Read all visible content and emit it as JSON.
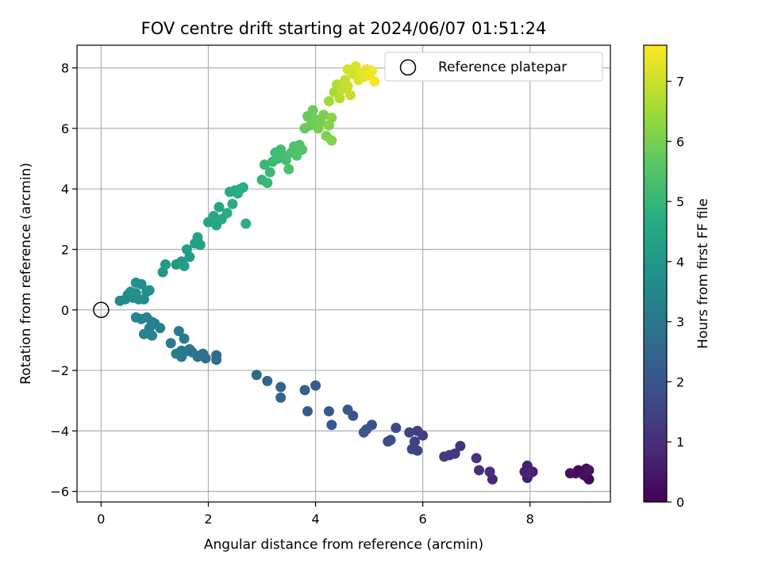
{
  "chart_data": {
    "type": "scatter",
    "title": "FOV centre drift starting at 2024/06/07 01:51:24",
    "xlabel": "Angular distance from reference (arcmin)",
    "ylabel": "Rotation from reference (arcmin)",
    "xlim": [
      -0.45,
      9.5
    ],
    "ylim": [
      -6.35,
      8.75
    ],
    "xticks": [
      0,
      2,
      4,
      6,
      8
    ],
    "yticks": [
      -6,
      -4,
      -2,
      0,
      2,
      4,
      6,
      8
    ],
    "grid": true,
    "colormap": "viridis",
    "colorbar": {
      "label": "Hours from first FF file",
      "range": [
        0,
        7.6
      ],
      "ticks": [
        0,
        1,
        2,
        3,
        4,
        5,
        6,
        7
      ]
    },
    "legend": {
      "position": "top-right",
      "entries": [
        "Reference platepar"
      ]
    },
    "reference_point": {
      "x": 0,
      "y": 0,
      "label": "Reference platepar"
    },
    "points": [
      [
        9.05,
        -5.5,
        0.0
      ],
      [
        8.95,
        -5.35,
        0.05
      ],
      [
        9.1,
        -5.6,
        0.1
      ],
      [
        8.9,
        -5.3,
        0.15
      ],
      [
        9.05,
        -5.25,
        0.2
      ],
      [
        8.85,
        -5.4,
        0.25
      ],
      [
        9.0,
        -5.45,
        0.3
      ],
      [
        8.75,
        -5.4,
        0.35
      ],
      [
        9.1,
        -5.3,
        0.4
      ],
      [
        8.05,
        -5.35,
        0.55
      ],
      [
        7.95,
        -5.55,
        0.6
      ],
      [
        7.95,
        -5.15,
        0.65
      ],
      [
        7.9,
        -5.35,
        0.7
      ],
      [
        8.0,
        -5.4,
        0.75
      ],
      [
        7.3,
        -5.6,
        0.9
      ],
      [
        7.25,
        -5.35,
        0.95
      ],
      [
        7.05,
        -5.3,
        1.0
      ],
      [
        7.0,
        -4.9,
        1.05
      ],
      [
        6.7,
        -4.5,
        1.15
      ],
      [
        6.6,
        -4.75,
        1.2
      ],
      [
        6.5,
        -4.8,
        1.25
      ],
      [
        6.4,
        -4.85,
        1.3
      ],
      [
        6.0,
        -4.15,
        1.4
      ],
      [
        5.9,
        -4.0,
        1.45
      ],
      [
        5.9,
        -4.65,
        1.5
      ],
      [
        5.8,
        -4.6,
        1.55
      ],
      [
        5.85,
        -4.35,
        1.55
      ],
      [
        5.75,
        -4.05,
        1.6
      ],
      [
        5.5,
        -3.9,
        1.7
      ],
      [
        5.4,
        -4.3,
        1.75
      ],
      [
        5.35,
        -4.35,
        1.8
      ],
      [
        5.05,
        -3.8,
        1.85
      ],
      [
        4.95,
        -3.95,
        1.9
      ],
      [
        4.9,
        -4.05,
        1.95
      ],
      [
        4.7,
        -3.5,
        2.0
      ],
      [
        4.6,
        -3.3,
        2.05
      ],
      [
        4.3,
        -3.8,
        2.1
      ],
      [
        4.25,
        -3.35,
        2.15
      ],
      [
        4.0,
        -2.5,
        2.2
      ],
      [
        3.85,
        -3.35,
        2.25
      ],
      [
        3.8,
        -2.65,
        2.3
      ],
      [
        3.35,
        -2.55,
        2.4
      ],
      [
        3.35,
        -2.9,
        2.45
      ],
      [
        3.1,
        -2.35,
        2.5
      ],
      [
        2.9,
        -2.15,
        2.55
      ],
      [
        2.15,
        -1.5,
        2.65
      ],
      [
        2.15,
        -1.65,
        2.7
      ],
      [
        1.95,
        -1.6,
        2.75
      ],
      [
        1.9,
        -1.45,
        2.8
      ],
      [
        1.85,
        -1.5,
        2.85
      ],
      [
        1.8,
        -1.55,
        2.9
      ],
      [
        1.7,
        -1.4,
        2.95
      ],
      [
        1.65,
        -1.3,
        2.95
      ],
      [
        1.55,
        -1.4,
        3.0
      ],
      [
        1.5,
        -1.55,
        3.05
      ],
      [
        1.5,
        -1.35,
        3.05
      ],
      [
        1.55,
        -0.95,
        3.1
      ],
      [
        1.45,
        -0.7,
        3.15
      ],
      [
        1.4,
        -1.45,
        3.1
      ],
      [
        1.3,
        -1.1,
        3.15
      ],
      [
        1.1,
        -0.6,
        3.2
      ],
      [
        1.0,
        -0.45,
        3.25
      ],
      [
        0.95,
        -0.4,
        3.3
      ],
      [
        0.9,
        -0.6,
        3.3
      ],
      [
        0.85,
        -0.25,
        3.35
      ],
      [
        0.95,
        -0.85,
        3.35
      ],
      [
        0.8,
        -0.8,
        3.4
      ],
      [
        0.75,
        -0.3,
        3.4
      ],
      [
        0.65,
        -0.25,
        3.45
      ],
      [
        0.35,
        0.3,
        3.55
      ],
      [
        0.45,
        0.35,
        3.6
      ],
      [
        0.5,
        0.5,
        3.6
      ],
      [
        0.6,
        0.4,
        3.65
      ],
      [
        0.65,
        0.55,
        3.65
      ],
      [
        0.7,
        0.35,
        3.7
      ],
      [
        0.75,
        0.85,
        3.7
      ],
      [
        0.8,
        0.35,
        3.75
      ],
      [
        0.85,
        0.6,
        3.75
      ],
      [
        0.9,
        0.65,
        3.8
      ],
      [
        0.65,
        0.9,
        3.8
      ],
      [
        0.55,
        0.6,
        3.85
      ],
      [
        1.15,
        1.25,
        4.0
      ],
      [
        1.2,
        1.5,
        4.05
      ],
      [
        1.4,
        1.5,
        4.1
      ],
      [
        1.5,
        1.6,
        4.1
      ],
      [
        1.55,
        1.45,
        4.15
      ],
      [
        1.65,
        1.75,
        4.15
      ],
      [
        1.6,
        2.0,
        4.2
      ],
      [
        1.75,
        2.2,
        4.25
      ],
      [
        1.8,
        2.4,
        4.3
      ],
      [
        1.85,
        2.15,
        4.3
      ],
      [
        2.0,
        2.9,
        4.45
      ],
      [
        2.1,
        3.1,
        4.5
      ],
      [
        2.15,
        2.8,
        4.5
      ],
      [
        2.2,
        3.4,
        4.55
      ],
      [
        2.25,
        3.0,
        4.55
      ],
      [
        2.35,
        3.2,
        4.6
      ],
      [
        2.4,
        3.9,
        4.6
      ],
      [
        2.5,
        3.95,
        4.65
      ],
      [
        2.45,
        3.5,
        4.65
      ],
      [
        2.55,
        3.85,
        4.7
      ],
      [
        2.6,
        4.0,
        4.75
      ],
      [
        2.65,
        4.05,
        4.75
      ],
      [
        2.7,
        2.85,
        4.8
      ],
      [
        3.0,
        4.3,
        5.0
      ],
      [
        3.05,
        4.8,
        5.05
      ],
      [
        3.1,
        4.2,
        5.05
      ],
      [
        3.15,
        4.55,
        5.1
      ],
      [
        3.2,
        4.9,
        5.15
      ],
      [
        3.25,
        5.2,
        5.2
      ],
      [
        3.3,
        5.0,
        5.2
      ],
      [
        3.35,
        5.3,
        5.25
      ],
      [
        3.4,
        5.1,
        5.25
      ],
      [
        3.45,
        4.95,
        5.3
      ],
      [
        3.5,
        4.65,
        5.35
      ],
      [
        3.55,
        5.2,
        5.35
      ],
      [
        3.6,
        5.4,
        5.4
      ],
      [
        3.65,
        5.1,
        5.45
      ],
      [
        3.7,
        5.45,
        5.45
      ],
      [
        3.75,
        5.3,
        5.5
      ],
      [
        3.8,
        6.0,
        5.75
      ],
      [
        3.85,
        6.4,
        5.8
      ],
      [
        3.9,
        6.1,
        5.85
      ],
      [
        3.95,
        6.6,
        5.85
      ],
      [
        4.0,
        6.3,
        5.9
      ],
      [
        4.05,
        6.0,
        5.95
      ],
      [
        4.1,
        6.2,
        6.0
      ],
      [
        4.15,
        6.45,
        6.05
      ],
      [
        4.2,
        5.75,
        6.1
      ],
      [
        4.25,
        6.1,
        6.15
      ],
      [
        4.3,
        5.6,
        6.15
      ],
      [
        4.3,
        6.35,
        6.2
      ],
      [
        4.25,
        6.9,
        6.5
      ],
      [
        4.35,
        7.2,
        6.6
      ],
      [
        4.4,
        7.45,
        6.7
      ],
      [
        4.45,
        7.0,
        6.75
      ],
      [
        4.5,
        7.3,
        6.85
      ],
      [
        4.55,
        7.6,
        6.9
      ],
      [
        4.6,
        7.4,
        6.95
      ],
      [
        4.65,
        7.1,
        7.0
      ],
      [
        4.7,
        7.8,
        7.05
      ],
      [
        4.6,
        7.95,
        7.1
      ],
      [
        4.75,
        8.05,
        7.15
      ],
      [
        4.8,
        7.6,
        7.2
      ],
      [
        4.85,
        7.85,
        7.25
      ],
      [
        4.9,
        7.7,
        7.3
      ],
      [
        4.95,
        7.95,
        7.35
      ],
      [
        5.0,
        7.75,
        7.4
      ],
      [
        5.05,
        7.9,
        7.45
      ],
      [
        5.1,
        7.55,
        7.5
      ]
    ]
  }
}
